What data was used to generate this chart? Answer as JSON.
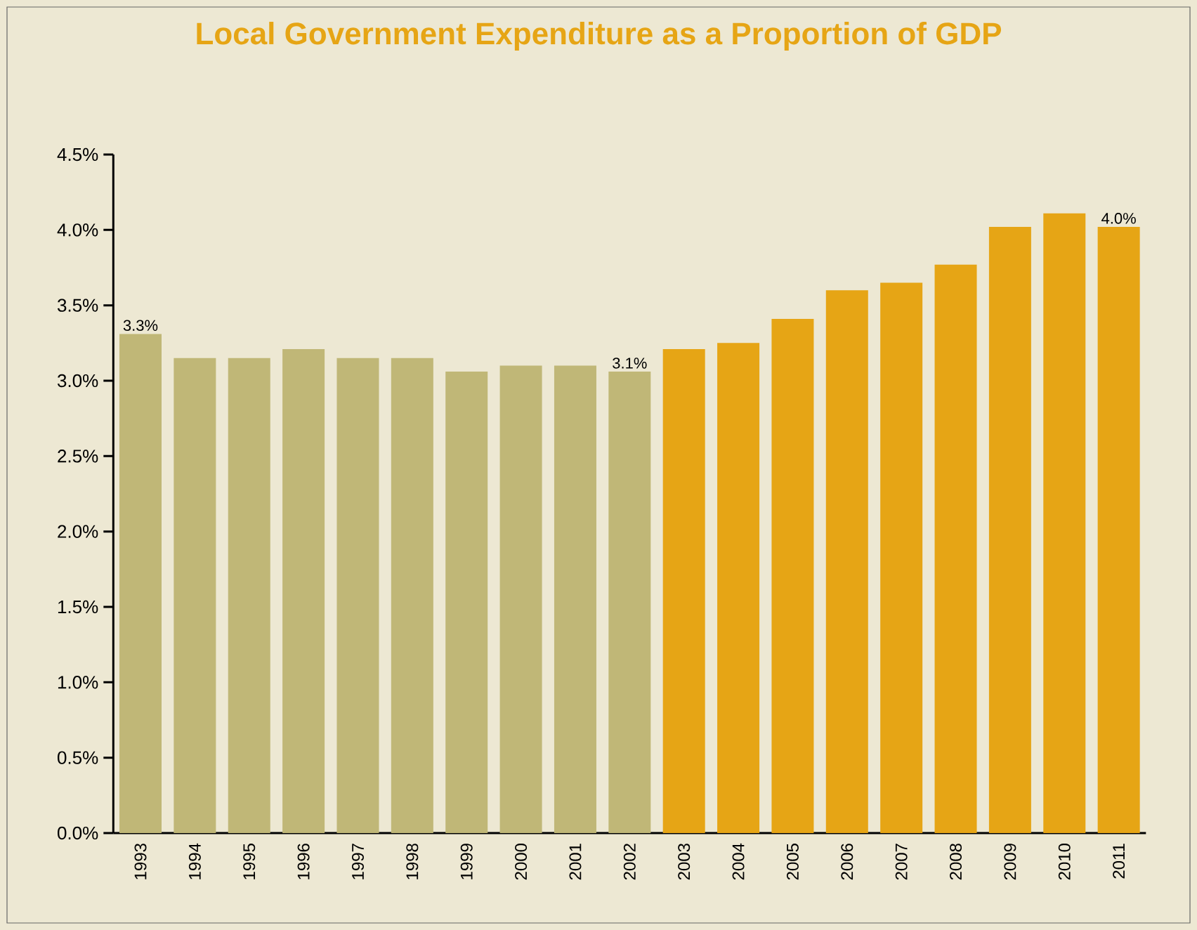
{
  "chart_data": {
    "type": "bar",
    "title": "Local Government Expenditure as a Proportion of GDP",
    "categories": [
      "1993",
      "1994",
      "1995",
      "1996",
      "1997",
      "1998",
      "1999",
      "2000",
      "2001",
      "2002",
      "2003",
      "2004",
      "2005",
      "2006",
      "2007",
      "2008",
      "2009",
      "2010",
      "2011"
    ],
    "values": [
      3.31,
      3.15,
      3.15,
      3.21,
      3.15,
      3.15,
      3.06,
      3.1,
      3.1,
      3.06,
      3.21,
      3.25,
      3.41,
      3.6,
      3.65,
      3.77,
      4.02,
      4.11,
      4.02
    ],
    "colors": [
      "#c0b777",
      "#c0b777",
      "#c0b777",
      "#c0b777",
      "#c0b777",
      "#c0b777",
      "#c0b777",
      "#c0b777",
      "#c0b777",
      "#c0b777",
      "#e6a515",
      "#e6a515",
      "#e6a515",
      "#e6a515",
      "#e6a515",
      "#e6a515",
      "#e6a515",
      "#e6a515",
      "#e6a515"
    ],
    "value_labels": [
      "3.3%",
      null,
      null,
      null,
      null,
      null,
      null,
      null,
      null,
      "3.1%",
      null,
      null,
      null,
      null,
      null,
      null,
      null,
      null,
      "4.0%"
    ],
    "ylim": [
      0,
      4.5
    ],
    "yticks": [
      {
        "value": 0,
        "label": "0.0%"
      },
      {
        "value": 0.5,
        "label": "0.5%"
      },
      {
        "value": 1,
        "label": "1.0%"
      },
      {
        "value": 1.5,
        "label": "1.5%"
      },
      {
        "value": 2,
        "label": "2.0%"
      },
      {
        "value": 2.5,
        "label": "2.5%"
      },
      {
        "value": 3,
        "label": "3.0%"
      },
      {
        "value": 3.5,
        "label": "3.5%"
      },
      {
        "value": 4,
        "label": "4.0%"
      },
      {
        "value": 4.5,
        "label": "4.5%"
      }
    ],
    "grid": false
  }
}
